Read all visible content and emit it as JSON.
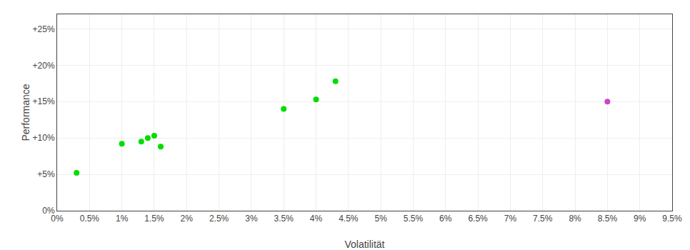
{
  "chart_data": {
    "type": "scatter",
    "xlabel": "Volatilität",
    "ylabel": "Performance",
    "series": [
      {
        "color": "#00dd00",
        "x": [
          0.003,
          0.01,
          0.013,
          0.014,
          0.015,
          0.016,
          0.035,
          0.04,
          0.043
        ],
        "values": [
          0.052,
          0.092,
          0.095,
          0.1,
          0.103,
          0.088,
          0.14,
          0.153,
          0.178
        ]
      },
      {
        "color": "#cc44cc",
        "x": [
          0.085
        ],
        "values": [
          0.15
        ]
      }
    ],
    "xlim": [
      0.0,
      0.095
    ],
    "ylim": [
      0.0,
      0.27
    ],
    "xticks": [
      {
        "value": 0.0,
        "label": "0%"
      },
      {
        "value": 0.005,
        "label": "0.5%"
      },
      {
        "value": 0.01,
        "label": "1%"
      },
      {
        "value": 0.015,
        "label": "1.5%"
      },
      {
        "value": 0.02,
        "label": "2%"
      },
      {
        "value": 0.025,
        "label": "2.5%"
      },
      {
        "value": 0.03,
        "label": "3%"
      },
      {
        "value": 0.035,
        "label": "3.5%"
      },
      {
        "value": 0.04,
        "label": "4%"
      },
      {
        "value": 0.045,
        "label": "4.5%"
      },
      {
        "value": 0.05,
        "label": "5%"
      },
      {
        "value": 0.055,
        "label": "5.5%"
      },
      {
        "value": 0.06,
        "label": "6%"
      },
      {
        "value": 0.065,
        "label": "6.5%"
      },
      {
        "value": 0.07,
        "label": "7%"
      },
      {
        "value": 0.075,
        "label": "7.5%"
      },
      {
        "value": 0.08,
        "label": "8%"
      },
      {
        "value": 0.085,
        "label": "8.5%"
      },
      {
        "value": 0.09,
        "label": "9%"
      },
      {
        "value": 0.095,
        "label": "9.5%"
      }
    ],
    "yticks": [
      {
        "value": 0.0,
        "label": "0%"
      },
      {
        "value": 0.05,
        "label": "+5%"
      },
      {
        "value": 0.1,
        "label": "+10%"
      },
      {
        "value": 0.15,
        "label": "+15%"
      },
      {
        "value": 0.2,
        "label": "+20%"
      },
      {
        "value": 0.25,
        "label": "+25%"
      }
    ],
    "grid": true
  }
}
